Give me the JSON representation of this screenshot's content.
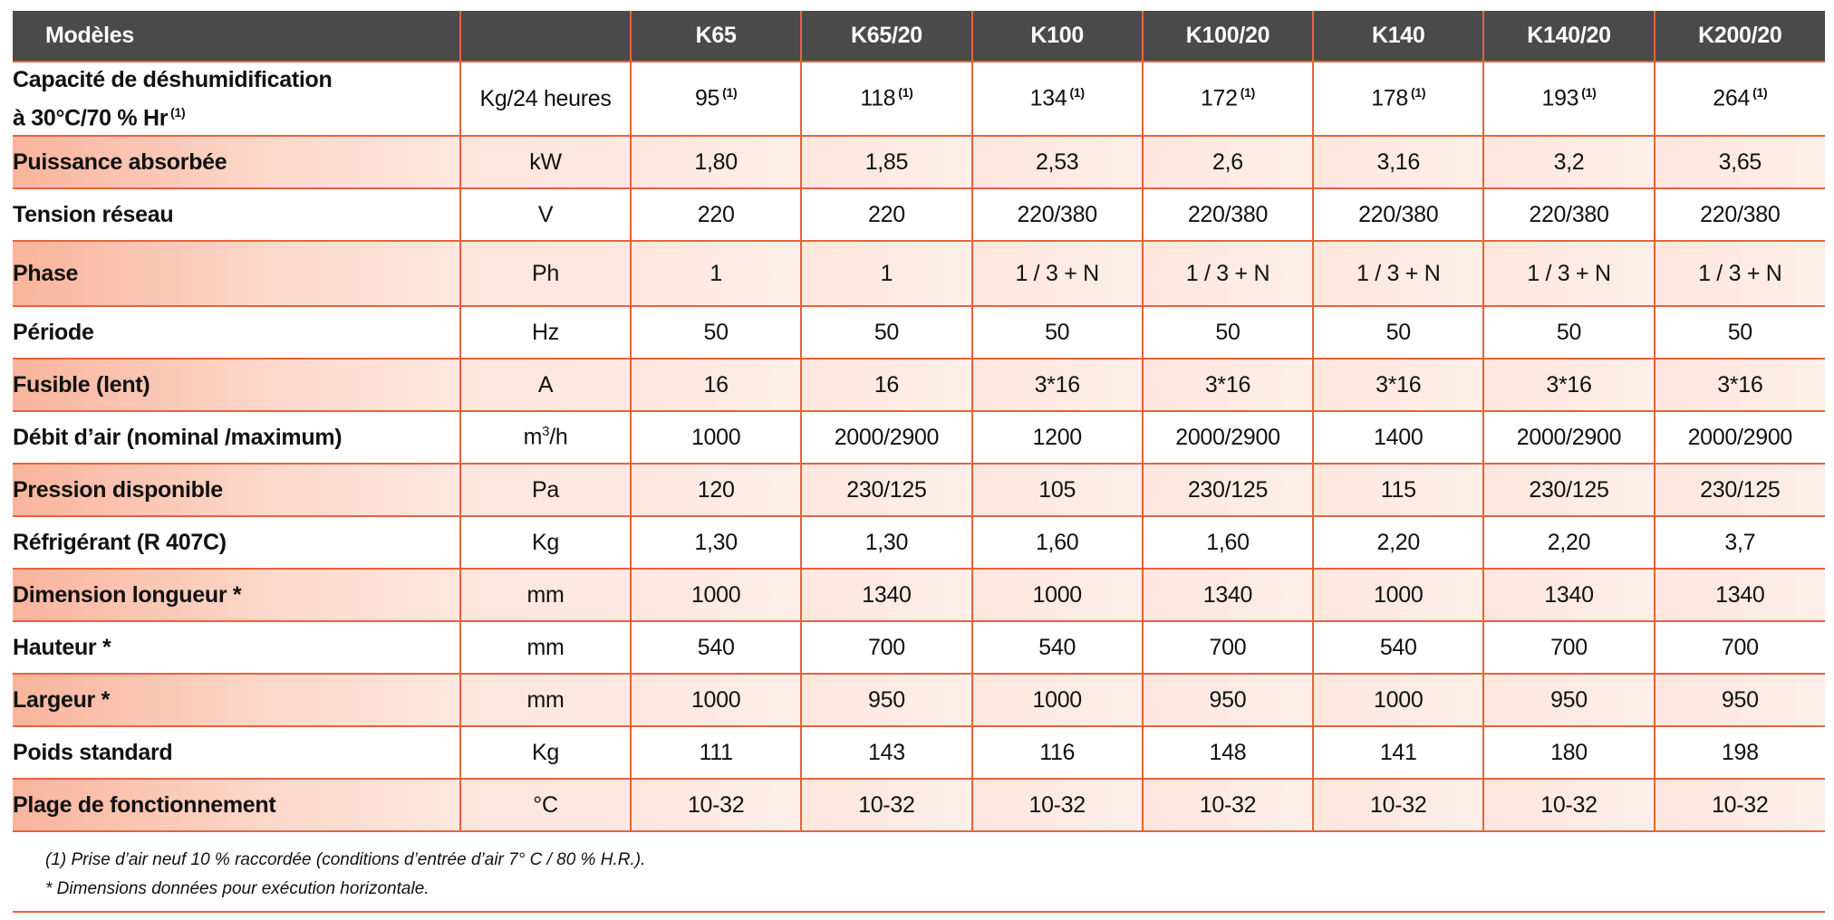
{
  "table": {
    "corner_label": "Modèles",
    "models": [
      "K65",
      "K65/20",
      "K100",
      "K100/20",
      "K140",
      "K140/20",
      "K200/20"
    ],
    "rows": [
      {
        "label_line1": "Capacité de déshumidification",
        "label_line2": "à 30°C/70 % Hr",
        "label_note": "(1)",
        "unit": "Kg/24 heures",
        "values": [
          "95",
          "118",
          "134",
          "172",
          "178",
          "193",
          "264"
        ],
        "value_note": "(1)"
      },
      {
        "label": "Puissance absorbée",
        "unit": "kW",
        "values": [
          "1,80",
          "1,85",
          "2,53",
          "2,6",
          "3,16",
          "3,2",
          "3,65"
        ]
      },
      {
        "label": "Tension réseau",
        "unit": "V",
        "values": [
          "220",
          "220",
          "220/380",
          "220/380",
          "220/380",
          "220/380",
          "220/380"
        ]
      },
      {
        "label": "Phase",
        "unit": "Ph",
        "values": [
          "1",
          "1",
          "1 / 3 + N",
          "1 / 3 + N",
          "1 / 3 + N",
          "1 / 3 + N",
          "1 / 3 + N"
        ]
      },
      {
        "label": "Période",
        "unit": "Hz",
        "values": [
          "50",
          "50",
          "50",
          "50",
          "50",
          "50",
          "50"
        ]
      },
      {
        "label": "Fusible (lent)",
        "unit": "A",
        "values": [
          "16",
          "16",
          "3*16",
          "3*16",
          "3*16",
          "3*16",
          "3*16"
        ]
      },
      {
        "label": "Débit d’air (nominal /maximum)",
        "unit_base": "m",
        "unit_sup": "3",
        "unit_tail": "/h",
        "values": [
          "1000",
          "2000/2900",
          "1200",
          "2000/2900",
          "1400",
          "2000/2900",
          "2000/2900"
        ]
      },
      {
        "label": "Pression disponible",
        "unit": "Pa",
        "values": [
          "120",
          "230/125",
          "105",
          "230/125",
          "115",
          "230/125",
          "230/125"
        ]
      },
      {
        "label": "Réfrigérant (R 407C)",
        "unit": "Kg",
        "values": [
          "1,30",
          "1,30",
          "1,60",
          "1,60",
          "2,20",
          "2,20",
          "3,7"
        ]
      },
      {
        "label": "Dimension longueur *",
        "unit": "mm",
        "values": [
          "1000",
          "1340",
          "1000",
          "1340",
          "1000",
          "1340",
          "1340"
        ]
      },
      {
        "label": "Hauteur *",
        "unit": "mm",
        "values": [
          "540",
          "700",
          "540",
          "700",
          "540",
          "700",
          "700"
        ]
      },
      {
        "label": "Largeur *",
        "unit": "mm",
        "values": [
          "1000",
          "950",
          "1000",
          "950",
          "1000",
          "950",
          "950"
        ]
      },
      {
        "label": "Poids standard",
        "unit": "Kg",
        "values": [
          "111",
          "143",
          "116",
          "148",
          "141",
          "180",
          "198"
        ]
      },
      {
        "label": "Plage de fonctionnement",
        "unit": "°C",
        "values": [
          "10-32",
          "10-32",
          "10-32",
          "10-32",
          "10-32",
          "10-32",
          "10-32"
        ]
      }
    ]
  },
  "footnotes": {
    "note1": "(1) Prise d’air neuf 10 % raccordée (conditions d’entrée d’air 7° C / 80 % H.R.).",
    "note2": "* Dimensions données pour exécution horizontale."
  },
  "colors": {
    "header_bg": "#4a4a4a",
    "accent_border": "#e9623a",
    "shade_strong": "#f9b49c",
    "shade_light": "#fde7de"
  }
}
